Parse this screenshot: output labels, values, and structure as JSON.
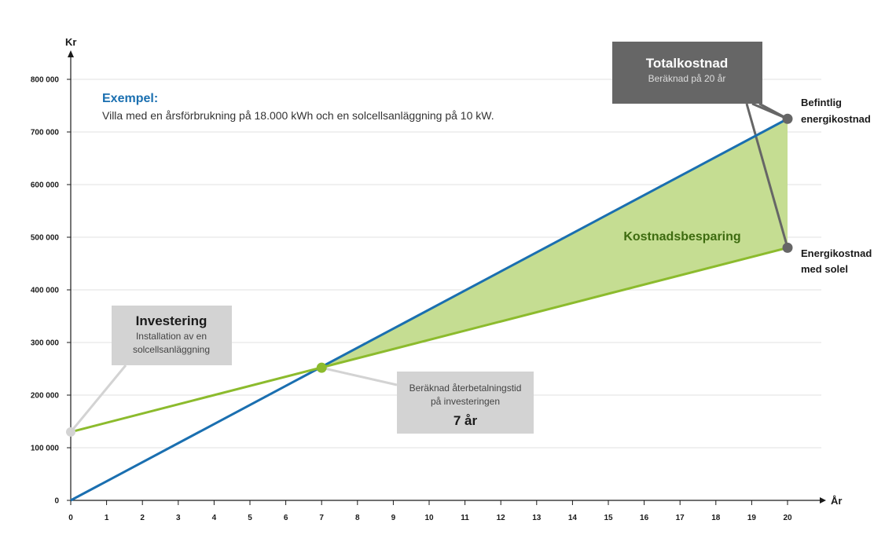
{
  "chart_data": {
    "type": "line",
    "ylabel": "Kr",
    "xlabel": "År",
    "x": [
      0,
      1,
      2,
      3,
      4,
      5,
      6,
      7,
      8,
      9,
      10,
      11,
      12,
      13,
      14,
      15,
      16,
      17,
      18,
      19,
      20
    ],
    "ylim": [
      0,
      800000
    ],
    "xlim": [
      0,
      20
    ],
    "y_ticks": [
      0,
      100000,
      200000,
      300000,
      400000,
      500000,
      600000,
      700000,
      800000
    ],
    "y_tick_labels": [
      "0",
      "100 000",
      "200 000",
      "300 000",
      "400 000",
      "500 000",
      "600 000",
      "700 000",
      "800 000"
    ],
    "grid": "horizontal",
    "series": [
      {
        "name": "Befintlig energikostnad",
        "color": "#1a6fb0",
        "points": [
          [
            0,
            0
          ],
          [
            20,
            725000
          ]
        ]
      },
      {
        "name": "Energikostnad med solel",
        "color": "#8cbb2d",
        "points": [
          [
            0,
            130000
          ],
          [
            20,
            480000
          ]
        ]
      }
    ],
    "shaded_area": {
      "label": "Kostnadsbesparing",
      "color": "#c5dd92",
      "from_x": 7,
      "to_x": 20
    },
    "intersection": {
      "x": 7,
      "y": 252000
    }
  },
  "example": {
    "title": "Exempel:",
    "text": "Villa med en årsförbrukning på 18.000 kWh och en solcellsanläggning på 10 kW."
  },
  "total_box": {
    "title": "Totalkostnad",
    "sub": "Beräknad på 20 år"
  },
  "invest_box": {
    "title": "Investering",
    "line1": "Installation av en",
    "line2": "solcellsanläggning"
  },
  "payback_box": {
    "line1": "Beräknad återbetalningstid",
    "line2": "på investeringen",
    "value": "7 år"
  },
  "end_labels": {
    "existing_line1": "Befintlig",
    "existing_line2": "energikostnad",
    "solar_line1": "Energikostnad",
    "solar_line2": "med solel"
  },
  "colors": {
    "blue": "#1a6fb0",
    "green": "#8cbb2d",
    "area": "#c5dd92",
    "dark_box": "#666666",
    "light_box": "#d3d3d3",
    "grid": "#e0e0e0"
  }
}
